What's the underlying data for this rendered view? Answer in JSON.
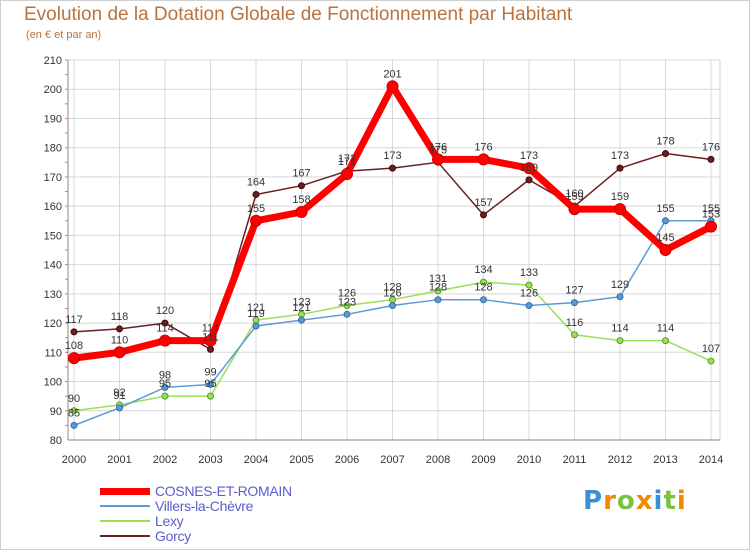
{
  "header": {
    "title": "Evolution de la Dotation Globale de Fonctionnement par Habitant",
    "subtitle": "(en € et par an)"
  },
  "chart_data": {
    "type": "line",
    "title": "Evolution de la Dotation Globale de Fonctionnement par Habitant",
    "subtitle": "(en € et par an)",
    "xlabel": "",
    "ylabel": "",
    "ylim": [
      80,
      210
    ],
    "ytick_step": 10,
    "grid": true,
    "legend_position": "bottom-left",
    "categories": [
      "2000",
      "2001",
      "2002",
      "2003",
      "2004",
      "2005",
      "2006",
      "2007",
      "2008",
      "2009",
      "2010",
      "2011",
      "2012",
      "2013",
      "2014"
    ],
    "series": [
      {
        "name": "COSNES-ET-ROMAIN",
        "color": "#ff0000",
        "values": [
          108,
          110,
          114,
          114,
          155,
          158,
          171,
          201,
          176,
          176,
          173,
          159,
          159,
          145,
          153
        ]
      },
      {
        "name": "Villers-la-Chèvre",
        "color": "#5b9bd5",
        "values": [
          85,
          91,
          98,
          99,
          119,
          121,
          123,
          126,
          128,
          128,
          126,
          127,
          129,
          155,
          155
        ]
      },
      {
        "name": "Lexy",
        "color": "#99e05a",
        "values": [
          90,
          92,
          95,
          95,
          121,
          123,
          126,
          128,
          131,
          134,
          133,
          116,
          114,
          114,
          107
        ]
      },
      {
        "name": "Gorcy",
        "color": "#6b1e1e",
        "values": [
          117,
          118,
          120,
          111,
          164,
          167,
          172,
          173,
          175,
          157,
          169,
          160,
          173,
          178,
          176
        ]
      }
    ]
  },
  "logo": {
    "letters": [
      {
        "ch": "P",
        "color": "#3a8fd6"
      },
      {
        "ch": "r",
        "color": "#f08a00"
      },
      {
        "ch": "o",
        "color": "#7cc242"
      },
      {
        "ch": "x",
        "color": "#f08a00"
      },
      {
        "ch": "i",
        "color": "#3a8fd6"
      },
      {
        "ch": "t",
        "color": "#7cc242"
      },
      {
        "ch": "i",
        "color": "#f08a00"
      }
    ]
  }
}
